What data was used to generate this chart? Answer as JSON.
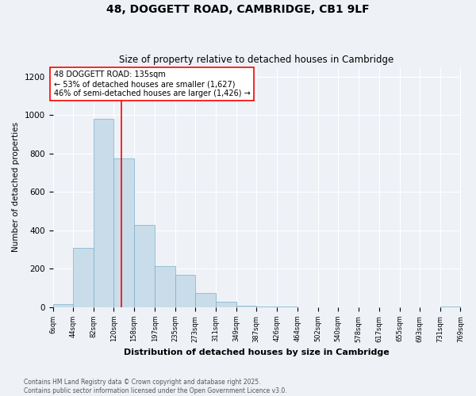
{
  "title": "48, DOGGETT ROAD, CAMBRIDGE, CB1 9LF",
  "subtitle": "Size of property relative to detached houses in Cambridge",
  "xlabel": "Distribution of detached houses by size in Cambridge",
  "ylabel": "Number of detached properties",
  "bar_color": "#c9dcea",
  "bar_edge_color": "#7aaec8",
  "bins": [
    6,
    44,
    82,
    120,
    158,
    197,
    235,
    273,
    311,
    349,
    387,
    426,
    464,
    502,
    540,
    578,
    617,
    655,
    693,
    731,
    769
  ],
  "bin_labels": [
    "6sqm",
    "44sqm",
    "82sqm",
    "120sqm",
    "158sqm",
    "197sqm",
    "235sqm",
    "273sqm",
    "311sqm",
    "349sqm",
    "387sqm",
    "426sqm",
    "464sqm",
    "502sqm",
    "540sqm",
    "578sqm",
    "617sqm",
    "655sqm",
    "693sqm",
    "731sqm",
    "769sqm"
  ],
  "values": [
    15,
    310,
    980,
    775,
    430,
    215,
    170,
    75,
    30,
    10,
    5,
    2,
    1,
    1,
    0,
    0,
    0,
    0,
    0,
    5
  ],
  "red_line_x": 135,
  "annotation_line1": "48 DOGGETT ROAD: 135sqm",
  "annotation_line2": "← 53% of detached houses are smaller (1,627)",
  "annotation_line3": "46% of semi-detached houses are larger (1,426) →",
  "ylim": [
    0,
    1250
  ],
  "yticks": [
    0,
    200,
    400,
    600,
    800,
    1000,
    1200
  ],
  "footnote": "Contains HM Land Registry data © Crown copyright and database right 2025.\nContains public sector information licensed under the Open Government Licence v3.0.",
  "background_color": "#eef2f7"
}
